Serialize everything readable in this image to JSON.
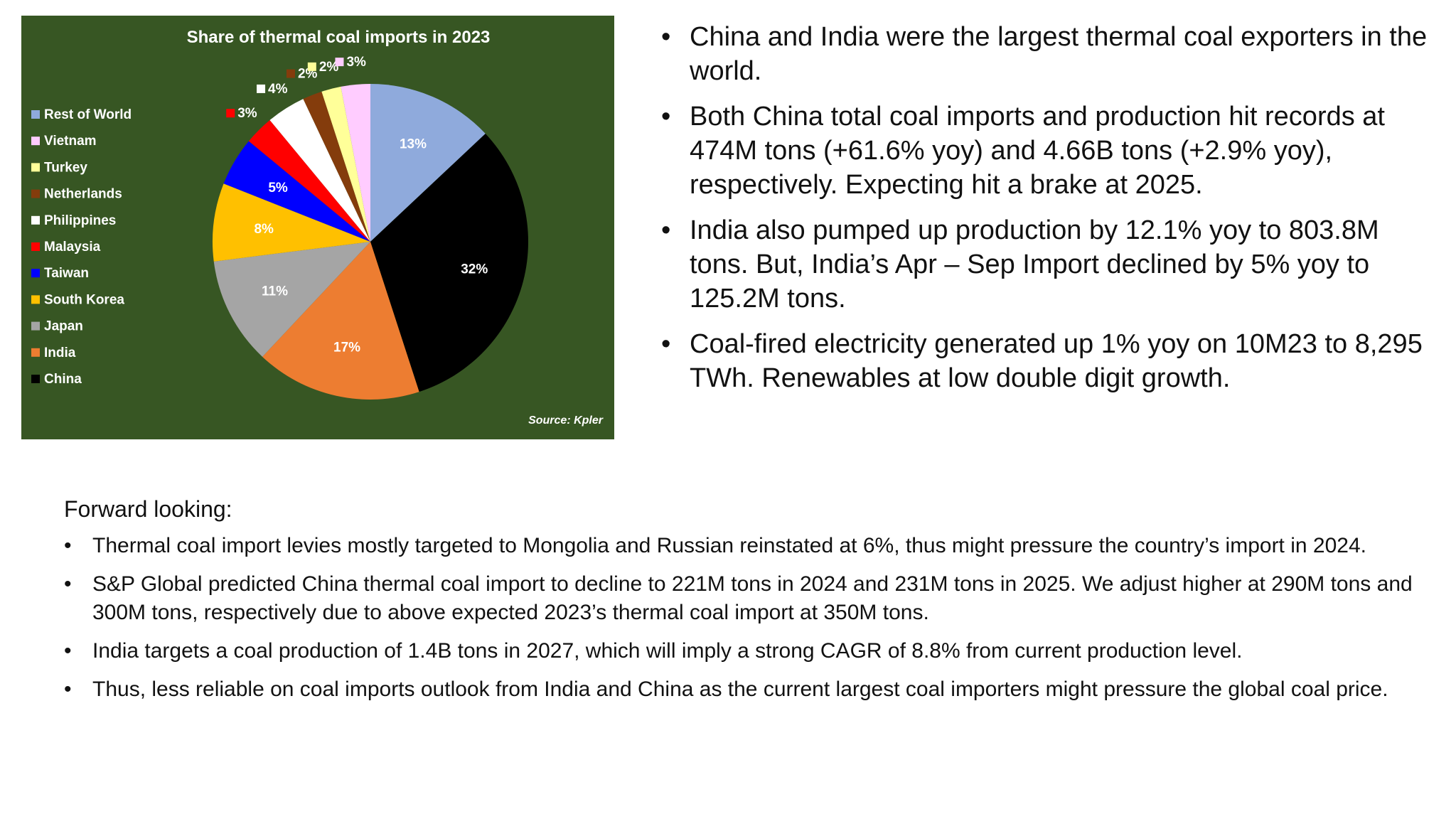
{
  "chart_data": {
    "type": "pie",
    "title": "Share of thermal coal imports in 2023",
    "source": "Source: Kpler",
    "legend_position": "left",
    "slices": [
      {
        "label": "Rest of World",
        "value": 13,
        "display": "13%",
        "color": "#8faadc"
      },
      {
        "label": "China",
        "value": 32,
        "display": "32%",
        "color": "#000000"
      },
      {
        "label": "India",
        "value": 17,
        "display": "17%",
        "color": "#ed7d31"
      },
      {
        "label": "Japan",
        "value": 11,
        "display": "11%",
        "color": "#a5a5a5"
      },
      {
        "label": "South Korea",
        "value": 8,
        "display": "8%",
        "color": "#ffc000"
      },
      {
        "label": "Taiwan",
        "value": 5,
        "display": "5%",
        "color": "#0000ff"
      },
      {
        "label": "Malaysia",
        "value": 3,
        "display": "3%",
        "color": "#ff0000"
      },
      {
        "label": "Philippines",
        "value": 4,
        "display": "4%",
        "color": "#ffffff"
      },
      {
        "label": "Netherlands",
        "value": 2,
        "display": "2%",
        "color": "#843c0c"
      },
      {
        "label": "Turkey",
        "value": 2,
        "display": "2%",
        "color": "#ffff99"
      },
      {
        "label": "Vietnam",
        "value": 3,
        "display": "3%",
        "color": "#ffccff"
      }
    ],
    "legend_order": [
      "Rest of World",
      "Vietnam",
      "Turkey",
      "Netherlands",
      "Philippines",
      "Malaysia",
      "Taiwan",
      "South Korea",
      "Japan",
      "India",
      "China"
    ]
  },
  "right_bullets": [
    "China and India were the largest thermal coal exporters in the world.",
    "Both China total coal imports and production hit records at 474M tons (+61.6% yoy) and 4.66B tons (+2.9% yoy), respectively. Expecting hit a brake at 2025.",
    "India also pumped up production by 12.1% yoy to 803.8M tons. But, India’s Apr – Sep Import declined by 5% yoy to 125.2M tons.",
    "Coal-fired electricity generated up 1% yoy on 10M23 to 8,295 TWh. Renewables at low double digit growth."
  ],
  "forward": {
    "heading": "Forward looking:",
    "bullets": [
      "Thermal coal import levies mostly targeted to Mongolia and Russian reinstated at 6%, thus might pressure the country’s import in 2024.",
      "S&P Global predicted China thermal coal import to decline to 221M tons in 2024 and 231M tons in 2025. We adjust higher at 290M tons and 300M tons, respectively due to above expected 2023’s thermal coal import at 350M tons.",
      "India targets a coal production of 1.4B tons in 2027, which will imply a strong CAGR of 8.8% from current production level.",
      "Thus, less reliable on coal imports outlook from India and China as the current largest coal importers might pressure the global coal price."
    ]
  }
}
